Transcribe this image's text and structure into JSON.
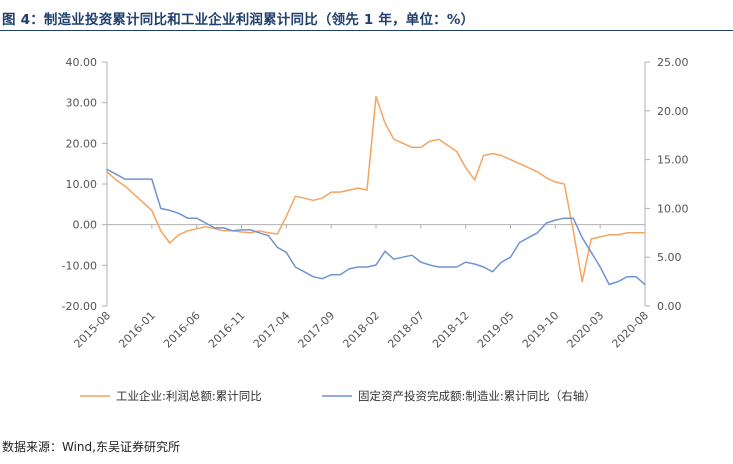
{
  "title": "图 4：制造业投资累计同比和工业企业利润累计同比（领先 1 年，单位：%）",
  "source": "数据来源：Wind,东吴证券研究所",
  "colors": {
    "profit": "#f4a460",
    "investment": "#6f94d0",
    "axis": "#b0b0b0",
    "title": "#1f3f6e"
  },
  "chart_data": {
    "type": "line",
    "x": [
      "2015-08",
      "2015-09",
      "2015-10",
      "2015-11",
      "2015-12",
      "2016-01",
      "2016-02",
      "2016-03",
      "2016-04",
      "2016-05",
      "2016-06",
      "2016-07",
      "2016-08",
      "2016-09",
      "2016-10",
      "2016-11",
      "2016-12",
      "2017-01",
      "2017-02",
      "2017-03",
      "2017-04",
      "2017-05",
      "2017-06",
      "2017-07",
      "2017-08",
      "2017-09",
      "2017-10",
      "2017-11",
      "2017-12",
      "2018-01",
      "2018-02",
      "2018-03",
      "2018-04",
      "2018-05",
      "2018-06",
      "2018-07",
      "2018-08",
      "2018-09",
      "2018-10",
      "2018-11",
      "2018-12",
      "2019-01",
      "2019-02",
      "2019-03",
      "2019-04",
      "2019-05",
      "2019-06",
      "2019-07",
      "2019-08",
      "2019-09",
      "2019-10",
      "2019-11",
      "2019-12",
      "2020-01",
      "2020-02",
      "2020-03",
      "2020-04",
      "2020-05",
      "2020-06",
      "2020-07",
      "2020-08"
    ],
    "xticks": [
      "2015-08",
      "2016-01",
      "2016-06",
      "2016-11",
      "2017-04",
      "2017-09",
      "2018-02",
      "2018-07",
      "2018-12",
      "2019-05",
      "2019-10",
      "2020-03",
      "2020-08"
    ],
    "yticks_left": [
      "40.00",
      "30.00",
      "20.00",
      "10.00",
      "0.00",
      "-10.00",
      "-20.00"
    ],
    "yticks_right": [
      "25.00",
      "20.00",
      "15.00",
      "10.00",
      "5.00",
      "0.00"
    ],
    "ylim_left": [
      -20,
      40
    ],
    "ylim_right": [
      0,
      25
    ],
    "grid": false,
    "legend_position": "bottom",
    "series": [
      {
        "name": "工业企业:利润总额:累计同比",
        "axis": "left",
        "values": [
          13.0,
          11.0,
          9.5,
          7.5,
          5.5,
          3.5,
          -1.5,
          -4.5,
          -2.5,
          -1.5,
          -1.0,
          -0.5,
          -1.0,
          -1.5,
          -1.5,
          -1.8,
          -2.0,
          -1.5,
          -2.0,
          -2.3,
          2.0,
          7.0,
          6.5,
          6.0,
          6.5,
          8.0,
          8.0,
          8.5,
          9.0,
          8.5,
          31.5,
          25.0,
          21.0,
          20.0,
          19.0,
          19.0,
          20.5,
          21.0,
          19.5,
          18.0,
          14.0,
          11.0,
          17.0,
          17.5,
          17.0,
          16.0,
          15.0,
          14.0,
          13.0,
          11.5,
          10.5,
          10.0,
          -1.5,
          -14.0,
          -3.5,
          -3.0,
          -2.5,
          -2.5,
          -2.0,
          -2.0,
          -2.0
        ],
        "color": "#f4a460"
      },
      {
        "name": "固定资产投资完成额:制造业:累计同比（右轴）",
        "axis": "right",
        "values": [
          14.0,
          13.5,
          13.0,
          13.0,
          13.0,
          13.0,
          10.0,
          9.8,
          9.5,
          9.0,
          9.0,
          8.5,
          8.0,
          8.0,
          7.7,
          7.8,
          7.8,
          7.5,
          7.2,
          6.0,
          5.5,
          4.0,
          3.5,
          3.0,
          2.8,
          3.2,
          3.2,
          3.8,
          4.0,
          4.0,
          4.2,
          5.6,
          4.8,
          5.0,
          5.2,
          4.5,
          4.2,
          4.0,
          4.0,
          4.0,
          4.5,
          4.3,
          4.0,
          3.5,
          4.5,
          5.0,
          6.5,
          7.0,
          7.5,
          8.5,
          8.8,
          9.0,
          9.0,
          7.0,
          5.5,
          4.0,
          2.2,
          2.5,
          3.0,
          3.0,
          2.2
        ],
        "color": "#6f94d0"
      }
    ]
  }
}
